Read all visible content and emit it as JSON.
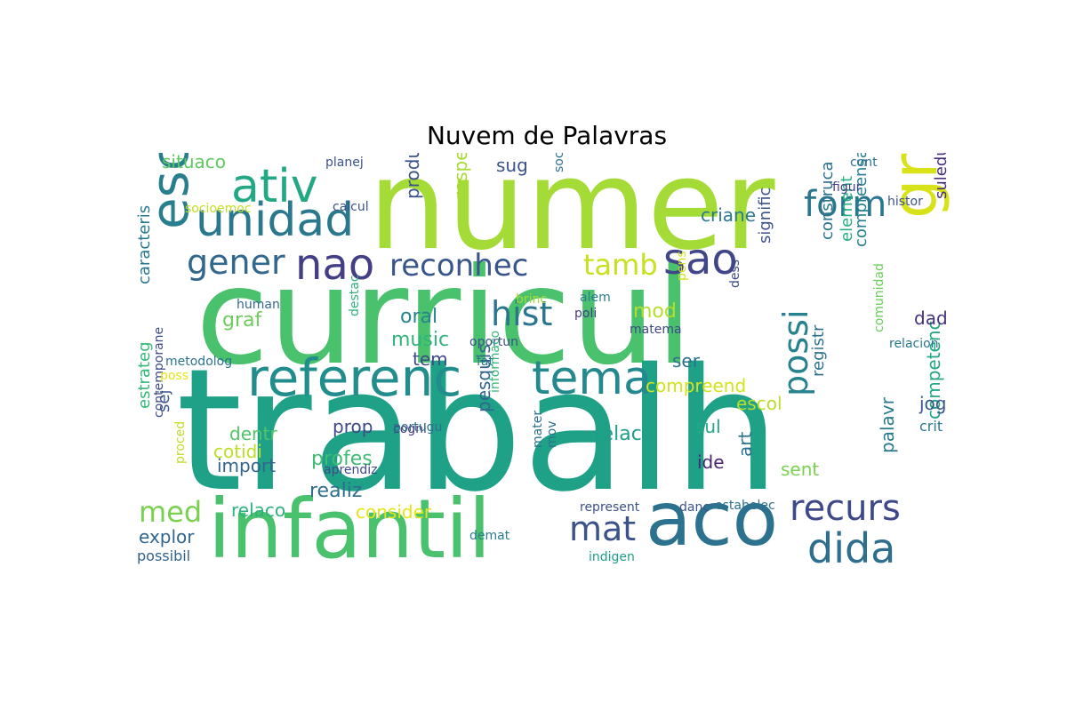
{
  "title": "Nuvem de Palavras",
  "words": [
    {
      "text": "numer",
      "color": "#a5db36"
    },
    {
      "text": "curricul",
      "color": "#4ac16d"
    },
    {
      "text": "trabalh",
      "color": "#1fa188"
    },
    {
      "text": "infantil",
      "color": "#4ac16d"
    },
    {
      "text": "aco",
      "color": "#2c728e"
    },
    {
      "text": "gross",
      "color": "#d8e219"
    },
    {
      "text": "referenc",
      "color": "#228d8d"
    },
    {
      "text": "tema",
      "color": "#23898e"
    },
    {
      "text": "unidad",
      "color": "#2a788e"
    },
    {
      "text": "ativ",
      "color": "#22a884"
    },
    {
      "text": "escrit",
      "color": "#277f8e"
    },
    {
      "text": "nao",
      "color": "#433e85"
    },
    {
      "text": "sao",
      "color": "#404688"
    },
    {
      "text": "reconhec",
      "color": "#39568c"
    },
    {
      "text": "gener",
      "color": "#31688e"
    },
    {
      "text": "form",
      "color": "#2a768e"
    },
    {
      "text": "hist",
      "color": "#2b758e"
    },
    {
      "text": "tamb",
      "color": "#c8e020"
    },
    {
      "text": "possi",
      "color": "#26828e"
    },
    {
      "text": "recurs",
      "color": "#3e4989"
    },
    {
      "text": "dida",
      "color": "#2e6e8e"
    },
    {
      "text": "mat",
      "color": "#3b528b"
    },
    {
      "text": "med",
      "color": "#7ad151"
    },
    {
      "text": "situaco",
      "color": "#5ec962"
    },
    {
      "text": "criane",
      "color": "#2a788e"
    },
    {
      "text": "mod",
      "color": "#b5de2b"
    },
    {
      "text": "oral",
      "color": "#25858e"
    },
    {
      "text": "music",
      "color": "#2fb47c"
    },
    {
      "text": "graf",
      "color": "#6ccd5a"
    },
    {
      "text": "produz",
      "color": "#3b528b"
    },
    {
      "text": "respeit",
      "color": "#a8db34"
    },
    {
      "text": "sug",
      "color": "#3b528b"
    },
    {
      "text": "tem",
      "color": "#3e4a89"
    },
    {
      "text": "ser",
      "color": "#2d708e"
    },
    {
      "text": "compreend",
      "color": "#d2e21b"
    },
    {
      "text": "escol",
      "color": "#b8de29"
    },
    {
      "text": "sul",
      "color": "#22a884"
    },
    {
      "text": "relaca",
      "color": "#1f9e89"
    },
    {
      "text": "prop",
      "color": "#3e4989"
    },
    {
      "text": "dentr",
      "color": "#52c569"
    },
    {
      "text": "cotidi",
      "color": "#bddf26"
    },
    {
      "text": "import",
      "color": "#32648e"
    },
    {
      "text": "profes",
      "color": "#3dbc74"
    },
    {
      "text": "realiz",
      "color": "#2e6f8e"
    },
    {
      "text": "consider",
      "color": "#e5e419"
    },
    {
      "text": "relaco",
      "color": "#2db27d"
    },
    {
      "text": "explor",
      "color": "#31668e"
    },
    {
      "text": "possibil",
      "color": "#33638d"
    },
    {
      "text": "pesquis",
      "color": "#32658e"
    },
    {
      "text": "ide",
      "color": "#482475"
    },
    {
      "text": "art",
      "color": "#2c728e"
    },
    {
      "text": "sent",
      "color": "#7ad151"
    },
    {
      "text": "palavr",
      "color": "#297a8e"
    },
    {
      "text": "competenc",
      "color": "#22a785"
    },
    {
      "text": "jog",
      "color": "#39568c"
    },
    {
      "text": "crit",
      "color": "#2a788e"
    },
    {
      "text": "dad",
      "color": "#46337e"
    },
    {
      "text": "suleducaca",
      "color": "#472d7b"
    },
    {
      "text": "compreensa",
      "color": "#277f8e"
    },
    {
      "text": "element",
      "color": "#29af7f"
    },
    {
      "text": "construca",
      "color": "#2c728e"
    },
    {
      "text": "signific",
      "color": "#3b528b"
    },
    {
      "text": "registr",
      "color": "#2d708e"
    },
    {
      "text": "caracteris",
      "color": "#29798e"
    },
    {
      "text": "estrateg",
      "color": "#35b779"
    },
    {
      "text": "sej",
      "color": "#39568c"
    },
    {
      "text": "contemporane",
      "color": "#3e4a89"
    },
    {
      "text": "proced",
      "color": "#bddf26"
    },
    {
      "text": "metodolog",
      "color": "#2c728e"
    },
    {
      "text": "poss",
      "color": "#e5e419"
    },
    {
      "text": "human",
      "color": "#31688e"
    },
    {
      "text": "destac",
      "color": "#2db27d"
    },
    {
      "text": "socioemoc",
      "color": "#c0df25"
    },
    {
      "text": "calcul",
      "color": "#3b528b"
    },
    {
      "text": "planej",
      "color": "#3b528b"
    },
    {
      "text": "sociedad",
      "color": "#2c728e"
    },
    {
      "text": "brinc",
      "color": "#a5db36"
    },
    {
      "text": "alem",
      "color": "#287d8e"
    },
    {
      "text": "poli",
      "color": "#433e85"
    },
    {
      "text": "pens",
      "color": "#d2e21b"
    },
    {
      "text": "matema",
      "color": "#3e4a89"
    },
    {
      "text": "dess",
      "color": "#3e4a89"
    },
    {
      "text": "oportun",
      "color": "#3b528b"
    },
    {
      "text": "fat",
      "color": "#2c728e"
    },
    {
      "text": "cogni",
      "color": "#46327e"
    },
    {
      "text": "informaco",
      "color": "#35b779"
    },
    {
      "text": "portugu",
      "color": "#2d708e"
    },
    {
      "text": "aprendiz",
      "color": "#3e4989"
    },
    {
      "text": "mater",
      "color": "#2d708e"
    },
    {
      "text": "mov",
      "color": "#2c728e"
    },
    {
      "text": "represent",
      "color": "#3b528b"
    },
    {
      "text": "demat",
      "color": "#277f8e"
    },
    {
      "text": "indigen",
      "color": "#1f9e89"
    },
    {
      "text": "danc",
      "color": "#3b528b"
    },
    {
      "text": "estabelec",
      "color": "#2c728e"
    },
    {
      "text": "comunidad",
      "color": "#6ccd5a"
    },
    {
      "text": "relacion",
      "color": "#2a788e"
    },
    {
      "text": "figur",
      "color": "#433e85"
    },
    {
      "text": "histor",
      "color": "#3b528b"
    },
    {
      "text": "cont",
      "color": "#2d708e"
    }
  ]
}
